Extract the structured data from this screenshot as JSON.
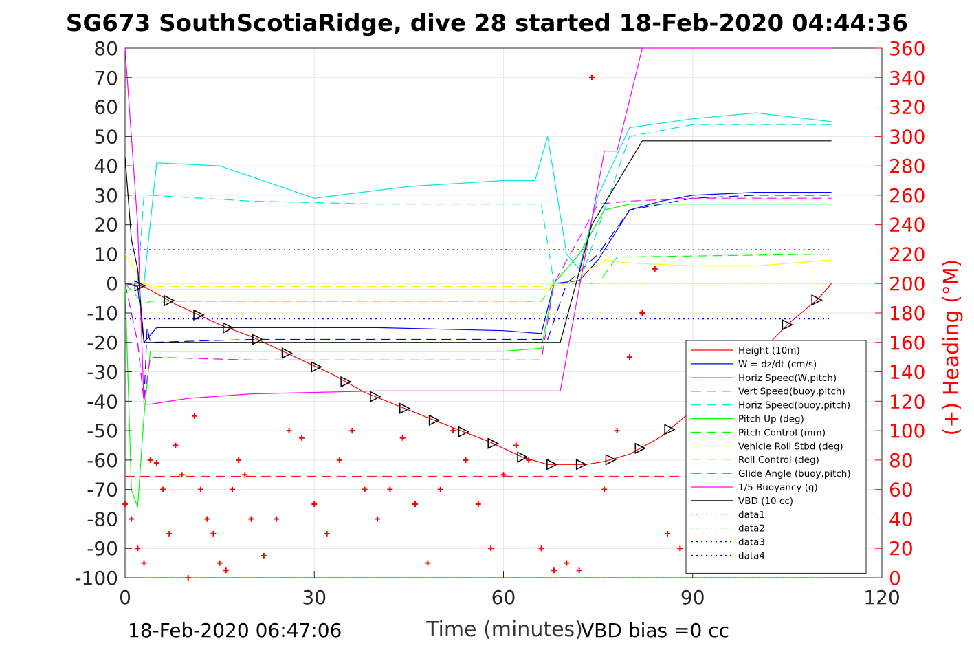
{
  "title": "SG673 SouthScotiaRidge, dive 28 started 18-Feb-2020 04:44:36",
  "footer": {
    "left": "18-Feb-2020 06:47:06",
    "right": "VBD bias =0 cc"
  },
  "colors": {
    "height": "#ff0000",
    "w": "#0000ff",
    "horiz_w": "#00e5e5",
    "pitch": "#00ff00",
    "roll": "#ffff00",
    "glide": "#ff00ff",
    "vbd": "#000000",
    "heading": "#ff0000"
  },
  "chart_data": {
    "type": "line",
    "xlabel": "Time (minutes)",
    "ylabel_right": "(+) Heading (°M)",
    "xlim": [
      0,
      120
    ],
    "ylim": [
      -100,
      80
    ],
    "ylim_right": [
      0,
      360
    ],
    "xticks": [
      0,
      30,
      60,
      90,
      120
    ],
    "yticks": [
      80,
      70,
      60,
      50,
      40,
      30,
      20,
      10,
      0,
      -10,
      -20,
      -30,
      -40,
      -50,
      -60,
      -70,
      -80,
      -90,
      -100
    ],
    "yticks_right": [
      360,
      340,
      320,
      300,
      280,
      260,
      240,
      220,
      200,
      180,
      160,
      140,
      120,
      100,
      80,
      60,
      40,
      20,
      0
    ],
    "grid": true,
    "legend_position": "bottom-right",
    "series": [
      {
        "name": "Height (10m)",
        "style": "solid",
        "x": [
          0,
          3,
          8,
          15,
          20,
          27,
          33,
          38,
          45,
          52,
          58,
          63,
          67,
          70,
          73,
          76,
          80,
          85,
          90,
          95,
          100,
          105,
          110,
          112
        ],
        "y": [
          0,
          -1,
          -7,
          -14,
          -18,
          -25,
          -31,
          -37,
          -43,
          -49,
          -54,
          -59,
          -61.5,
          -61.5,
          -61.5,
          -60.5,
          -58,
          -52,
          -43,
          -34,
          -25,
          -14,
          -5,
          0
        ]
      },
      {
        "name": "W = dz/dt (cm/s)",
        "style": "solid",
        "x": [
          0,
          2,
          3,
          5,
          20,
          40,
          60,
          66,
          68,
          72,
          75,
          80,
          85,
          90,
          100,
          112
        ],
        "y": [
          0,
          -1,
          -20,
          -15,
          -15,
          -15,
          -16,
          -17,
          0,
          1,
          8,
          25,
          28,
          30,
          31,
          31
        ]
      },
      {
        "name": "Horiz Speed(W,pitch)",
        "style": "solid",
        "x": [
          0,
          2,
          3,
          5,
          15,
          30,
          45,
          60,
          65,
          67,
          70,
          72,
          75,
          80,
          90,
          100,
          112
        ],
        "y": [
          0,
          0,
          0,
          41,
          40,
          29,
          33,
          35,
          35,
          50,
          10,
          5,
          30,
          53,
          56,
          58,
          55
        ]
      },
      {
        "name": "Vert Speed(buoy,pitch)",
        "style": "dashed",
        "x": [
          0,
          2,
          3,
          3.5,
          4,
          20,
          40,
          60,
          67,
          70,
          75,
          80,
          90,
          100,
          112
        ],
        "y": [
          0,
          -20,
          -40,
          -15,
          -20,
          -19,
          -19,
          -19,
          -19,
          0,
          10,
          25,
          29,
          30,
          30
        ]
      },
      {
        "name": "Horiz Speed(buoy,pitch)",
        "style": "dashed",
        "x": [
          0,
          2,
          3,
          4,
          20,
          40,
          60,
          66,
          68,
          72,
          76,
          80,
          90,
          100,
          112
        ],
        "y": [
          0,
          0,
          30,
          30,
          28,
          27,
          27,
          27,
          0,
          0,
          25,
          50,
          54,
          54,
          54
        ]
      },
      {
        "name": "Pitch Up (deg)",
        "style": "solid",
        "x": [
          0,
          1,
          2,
          3,
          4,
          20,
          40,
          60,
          66,
          68,
          72,
          76,
          80,
          90,
          100,
          112
        ],
        "y": [
          0,
          -70,
          -76,
          -45,
          -23,
          -23,
          -23,
          -23,
          -22,
          0,
          10,
          25,
          27,
          27,
          27,
          27
        ]
      },
      {
        "name": "Pitch Control (mm)",
        "style": "dashed",
        "x": [
          0,
          3,
          4,
          66,
          68,
          75,
          78,
          112
        ],
        "y": [
          0,
          -7,
          -6,
          -6,
          0,
          0,
          9,
          10
        ]
      },
      {
        "name": "Vehicle Roll Stbd (deg)",
        "style": "solid",
        "x": [
          0,
          3,
          5,
          20,
          40,
          60,
          66,
          70,
          76,
          80,
          90,
          100,
          112
        ],
        "y": [
          10,
          0,
          -2,
          -2,
          -2,
          -2,
          -2,
          0,
          8,
          7,
          6,
          6,
          8
        ]
      },
      {
        "name": "Roll Control (deg)",
        "style": "dashed",
        "x": [
          0,
          3,
          4,
          66,
          68,
          112
        ],
        "y": [
          0,
          0,
          -1,
          -1,
          0,
          0
        ]
      },
      {
        "name": "Glide Angle (buoy,pitch)",
        "style": "dashed",
        "x": [
          0,
          2,
          3,
          4,
          20,
          40,
          60,
          66,
          68,
          75,
          80,
          90,
          100,
          112
        ],
        "y": [
          0,
          -20,
          -40,
          -25,
          -26,
          -26,
          -26,
          -26,
          0,
          27,
          28,
          29,
          29,
          29
        ]
      },
      {
        "name": "1/5 Buoyancy (g)",
        "style": "solid",
        "x": [
          0,
          2,
          3,
          4,
          10,
          20,
          30,
          40,
          50,
          60,
          66,
          69,
          76,
          78,
          82,
          112
        ],
        "y": [
          80,
          20,
          -41,
          -41,
          -39,
          -37.5,
          -37,
          -36.5,
          -36.5,
          -36.5,
          -36.5,
          -36.5,
          45,
          45,
          80,
          80
        ]
      },
      {
        "name": "VBD (10 cc)",
        "style": "solid",
        "x": [
          0,
          1,
          2,
          3,
          5,
          20,
          40,
          60,
          66,
          69,
          74,
          82,
          112
        ],
        "y": [
          43,
          15,
          5,
          -20,
          -20,
          -20,
          -20,
          -20,
          -20,
          -20,
          20,
          48.5,
          48.5
        ]
      },
      {
        "name": "data1",
        "style": "dotted",
        "x": [
          0,
          112
        ],
        "y": [
          -100,
          -100
        ]
      },
      {
        "name": "data2",
        "style": "dotted",
        "x": [
          0,
          112
        ],
        "y": [
          -100,
          -100
        ]
      },
      {
        "name": "data3",
        "style": "dotted",
        "x": [
          0,
          112
        ],
        "y": [
          11.5,
          11.5
        ]
      },
      {
        "name": "data4",
        "style": "dotted",
        "x": [
          0,
          112
        ],
        "y": [
          -12,
          -12
        ]
      }
    ],
    "reference_lines": [
      {
        "y": -65.5,
        "style": "dashed",
        "color": "#ff0000",
        "x": [
          0,
          112
        ]
      }
    ],
    "heading_points": {
      "x": [
        0,
        1,
        2,
        3,
        4,
        5,
        6,
        7,
        8,
        9,
        10,
        11,
        12,
        13,
        14,
        15,
        16,
        17,
        18,
        19,
        20,
        22,
        24,
        26,
        28,
        30,
        32,
        34,
        36,
        38,
        40,
        42,
        44,
        46,
        48,
        50,
        52,
        54,
        56,
        58,
        60,
        62,
        64,
        66,
        68,
        70,
        72,
        74,
        76,
        78,
        80,
        82,
        84,
        86,
        88,
        90
      ],
      "y": [
        50,
        40,
        20,
        10,
        80,
        78,
        60,
        30,
        90,
        70,
        0,
        110,
        60,
        40,
        30,
        10,
        5,
        60,
        80,
        70,
        40,
        15,
        40,
        100,
        95,
        50,
        30,
        80,
        100,
        60,
        40,
        60,
        95,
        50,
        10,
        60,
        100,
        80,
        50,
        20,
        70,
        90,
        80,
        20,
        5,
        10,
        5,
        340,
        60,
        100,
        150,
        180,
        210,
        30,
        20,
        5
      ]
    },
    "markers_count": 24
  }
}
